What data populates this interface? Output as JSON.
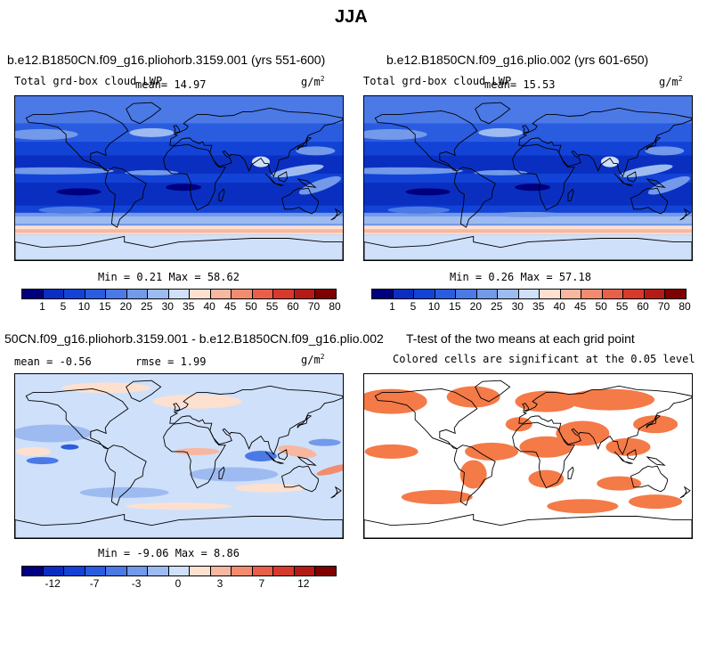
{
  "page": {
    "title": "JJA"
  },
  "panels": [
    {
      "id": "tl",
      "title": "b.e12.B1850CN.f09_g16.pliohorb.3159.001 (yrs 551-600)",
      "left_label": "Total grd-box cloud LWP",
      "mean_label": "mean=  14.97",
      "units": "g/m",
      "units_sup": "2",
      "minmax": "Min =    0.21  Max =   58.62",
      "scheme": "abs"
    },
    {
      "id": "tr",
      "title": "b.e12.B1850CN.f09_g16.plio.002 (yrs 601-650)",
      "left_label": "Total grd-box cloud LWP",
      "mean_label": "mean=  15.53",
      "units": "g/m",
      "units_sup": "2",
      "minmax": "Min =    0.26  Max =   57.18",
      "scheme": "abs"
    },
    {
      "id": "bl",
      "title": "50CN.f09_g16.pliohorb.3159.001 - b.e12.B1850CN.f09_g16.plio.002",
      "left_label": "mean =  -0.56",
      "mean_label": "rmse =   1.99",
      "units": "g/m",
      "units_sup": "2",
      "minmax": "Min =  -9.06  Max =   8.86",
      "scheme": "diff"
    },
    {
      "id": "br",
      "title": "T-test of the two means at each grid point",
      "subtitle": "Colored cells are significant at the 0.05 level",
      "scheme": "ttest"
    }
  ],
  "colorbars": {
    "abs": {
      "colors": [
        "#00007f",
        "#0a2fc0",
        "#1243d6",
        "#2a5ce0",
        "#4b79e6",
        "#7299ea",
        "#9dbbf0",
        "#cfe0fa",
        "#fde0d0",
        "#f7b7a0",
        "#f28c6e",
        "#e8604a",
        "#d73a2c",
        "#b61a15",
        "#7f0000"
      ],
      "labels": [
        "1",
        "5",
        "10",
        "15",
        "20",
        "25",
        "30",
        "35",
        "40",
        "45",
        "50",
        "55",
        "60",
        "70",
        "80"
      ]
    },
    "diff": {
      "colors": [
        "#00007f",
        "#0a2fc0",
        "#1243d6",
        "#2a5ce0",
        "#4b79e6",
        "#7299ea",
        "#9dbbf0",
        "#cfe0fa",
        "#fde0d0",
        "#f7b7a0",
        "#f28c6e",
        "#e8604a",
        "#d73a2c",
        "#b61a15",
        "#7f0000"
      ],
      "labels": [
        "-12",
        "-7",
        "-3",
        "0",
        "3",
        "7",
        "12"
      ]
    }
  },
  "legend_colors": {
    "ttest": "#f47a48",
    "land_line": "#000000"
  }
}
